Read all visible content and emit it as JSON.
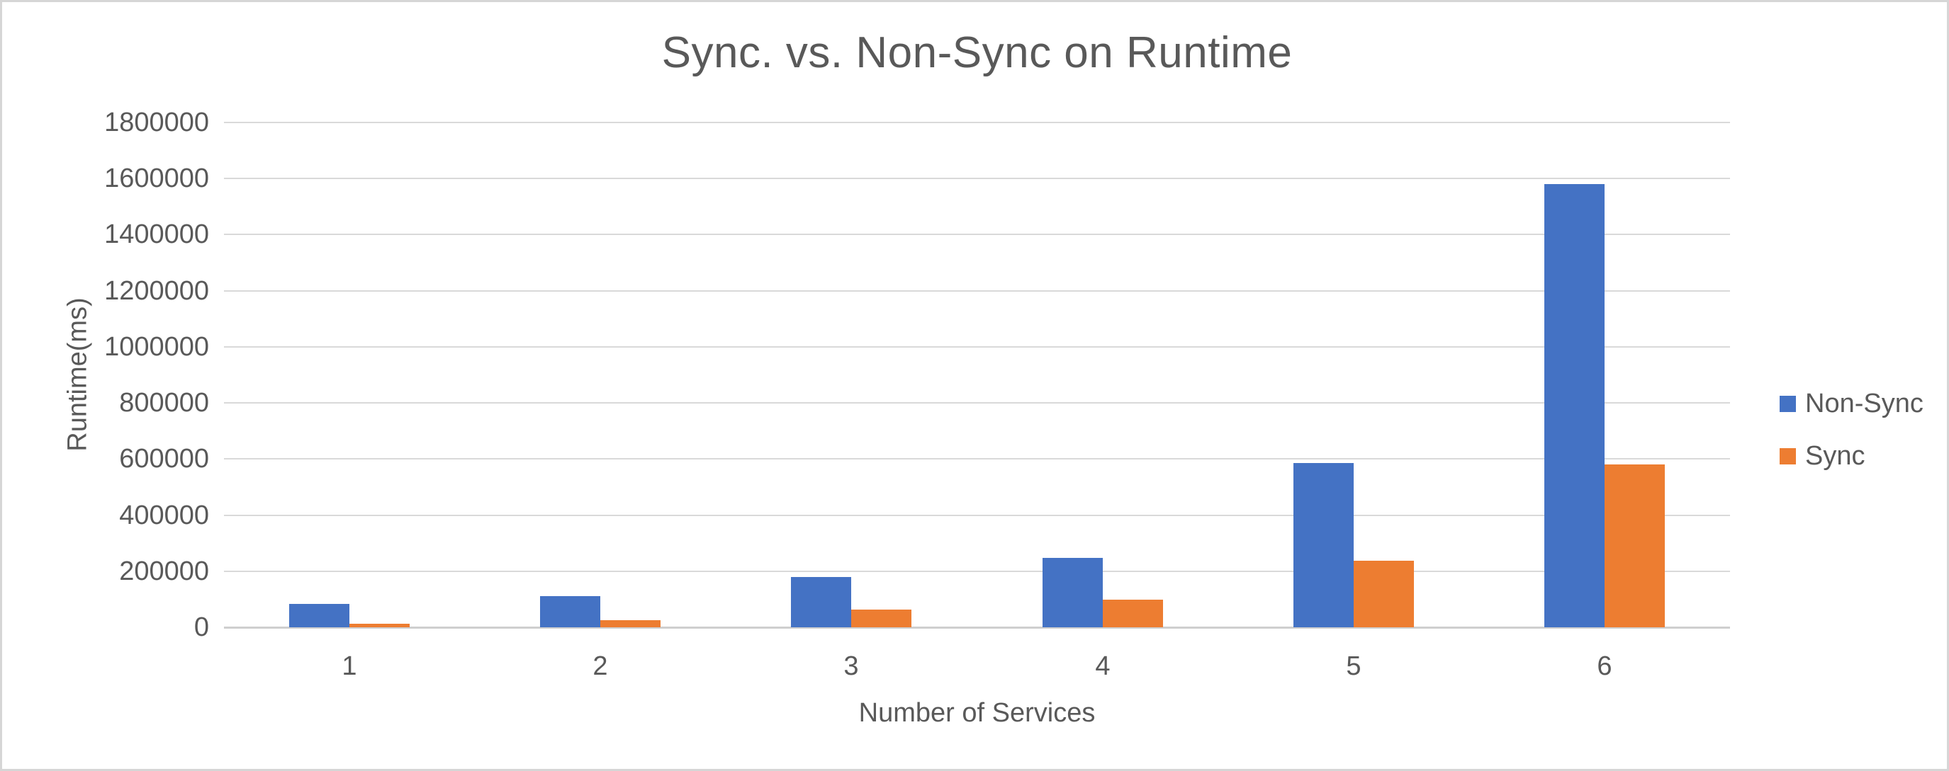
{
  "frame": {
    "background": "#ffffff",
    "border_color": "#d6d6d6"
  },
  "chart_data": {
    "type": "bar",
    "title": "Sync. vs. Non-Sync on Runtime",
    "xlabel": "Number of Services",
    "ylabel": "Runtime(ms)",
    "categories": [
      "1",
      "2",
      "3",
      "4",
      "5",
      "6"
    ],
    "series": [
      {
        "name": "Non-Sync",
        "color": "#4472C4",
        "values": [
          84000,
          112000,
          180000,
          248000,
          586000,
          1580000
        ]
      },
      {
        "name": "Sync",
        "color": "#ED7D31",
        "values": [
          12000,
          26000,
          64000,
          99000,
          238000,
          580000
        ]
      }
    ],
    "ylim": [
      0,
      1800000
    ],
    "ytick_step": 200000,
    "ytick_labels": [
      "0",
      "200000",
      "400000",
      "600000",
      "800000",
      "1000000",
      "1200000",
      "1400000",
      "1600000",
      "1800000"
    ],
    "grid": true,
    "legend_position": "right",
    "text_color": "#595959",
    "gridline_color": "#D9D9D9",
    "zero_line_color": "#CFCFCF"
  }
}
